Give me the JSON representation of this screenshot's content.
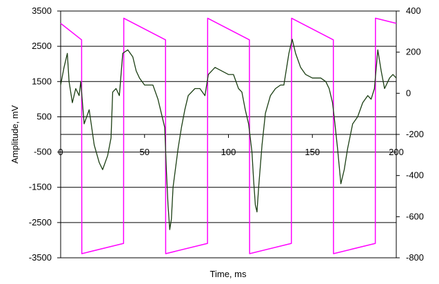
{
  "chart_data": {
    "type": "line",
    "title": "",
    "xlabel": "Time, ms",
    "ylabel": "Amplitude, mV",
    "xlim": [
      0,
      200
    ],
    "ylim_left": [
      -3500,
      3500
    ],
    "ylim_right": [
      -800,
      400
    ],
    "x_ticks": [
      0,
      50,
      100,
      150,
      200
    ],
    "y_left_ticks": [
      -3500,
      -2500,
      -1500,
      -500,
      500,
      1500,
      2500,
      3500
    ],
    "y_right_ticks": [
      -800,
      -600,
      -400,
      -200,
      0,
      200,
      400
    ],
    "grid": "horizontal (left axis ticks)",
    "legend": "none",
    "colors": {
      "signal": "#1a3d12",
      "sawtooth": "#ff00ff",
      "grid": "#000000"
    },
    "series": [
      {
        "axis": "right",
        "color": "#ff00ff",
        "values": [
          [
            0,
            340
          ],
          [
            12.5,
            260
          ],
          [
            12.6,
            -780
          ],
          [
            37.5,
            -730
          ],
          [
            37.6,
            365
          ],
          [
            62.5,
            260
          ],
          [
            62.6,
            -780
          ],
          [
            87.5,
            -730
          ],
          [
            87.6,
            365
          ],
          [
            112.5,
            260
          ],
          [
            112.6,
            -780
          ],
          [
            137.5,
            -730
          ],
          [
            137.6,
            365
          ],
          [
            162.5,
            260
          ],
          [
            162.6,
            -780
          ],
          [
            187.5,
            -730
          ],
          [
            187.6,
            365
          ],
          [
            200,
            340
          ]
        ]
      },
      {
        "axis": "left",
        "color": "#1a3d12",
        "values": [
          [
            0,
            1400
          ],
          [
            2,
            1900
          ],
          [
            4,
            2300
          ],
          [
            5,
            1500
          ],
          [
            7,
            900
          ],
          [
            9,
            1300
          ],
          [
            11,
            1100
          ],
          [
            12,
            1500
          ],
          [
            14,
            300
          ],
          [
            17,
            700
          ],
          [
            20,
            -300
          ],
          [
            23,
            -800
          ],
          [
            25,
            -1000
          ],
          [
            28,
            -600
          ],
          [
            30,
            -100
          ],
          [
            31,
            1200
          ],
          [
            33,
            1300
          ],
          [
            35,
            1100
          ],
          [
            37,
            2300
          ],
          [
            40,
            2400
          ],
          [
            43,
            2200
          ],
          [
            45,
            1800
          ],
          [
            47,
            1600
          ],
          [
            50,
            1400
          ],
          [
            55,
            1400
          ],
          [
            58,
            1000
          ],
          [
            60,
            600
          ],
          [
            62,
            200
          ],
          [
            63,
            -1000
          ],
          [
            64,
            -2000
          ],
          [
            65,
            -2700
          ],
          [
            66,
            -2400
          ],
          [
            67,
            -1500
          ],
          [
            70,
            -400
          ],
          [
            72,
            200
          ],
          [
            74,
            700
          ],
          [
            76,
            1100
          ],
          [
            80,
            1300
          ],
          [
            83,
            1300
          ],
          [
            86,
            1100
          ],
          [
            88,
            1700
          ],
          [
            92,
            1900
          ],
          [
            96,
            1800
          ],
          [
            100,
            1700
          ],
          [
            103,
            1700
          ],
          [
            106,
            1300
          ],
          [
            108,
            1200
          ],
          [
            110,
            700
          ],
          [
            112,
            300
          ],
          [
            114,
            -500
          ],
          [
            115,
            -1300
          ],
          [
            116,
            -2000
          ],
          [
            117,
            -2200
          ],
          [
            118,
            -1500
          ],
          [
            120,
            -300
          ],
          [
            122,
            600
          ],
          [
            125,
            1100
          ],
          [
            128,
            1300
          ],
          [
            131,
            1400
          ],
          [
            133,
            1400
          ],
          [
            136,
            2300
          ],
          [
            138,
            2700
          ],
          [
            140,
            2300
          ],
          [
            143,
            1900
          ],
          [
            146,
            1700
          ],
          [
            150,
            1600
          ],
          [
            155,
            1600
          ],
          [
            158,
            1500
          ],
          [
            160,
            1300
          ],
          [
            162,
            900
          ],
          [
            163,
            500
          ],
          [
            165,
            -400
          ],
          [
            166,
            -900
          ],
          [
            167,
            -1400
          ],
          [
            169,
            -1000
          ],
          [
            171,
            -400
          ],
          [
            174,
            300
          ],
          [
            177,
            500
          ],
          [
            180,
            900
          ],
          [
            183,
            1100
          ],
          [
            185,
            1000
          ],
          [
            187,
            1300
          ],
          [
            189,
            2400
          ],
          [
            191,
            1800
          ],
          [
            193,
            1300
          ],
          [
            196,
            1600
          ],
          [
            198,
            1700
          ],
          [
            200,
            1600
          ]
        ]
      }
    ]
  }
}
